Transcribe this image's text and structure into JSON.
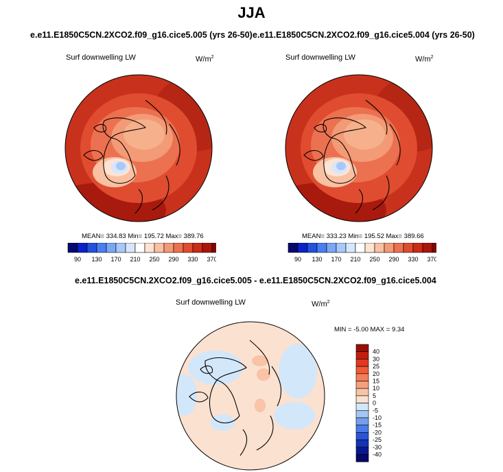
{
  "season": "JJA",
  "panels": [
    {
      "case": "e.e11.E1850C5CN.2XCO2.f09_g16.cice5.005 (yrs 26-50)",
      "variable": "Surf downwelling LW",
      "unit_base": "W/m",
      "unit_exp": "2",
      "stats": "MEAN= 334.83  Min= 195.72  Max= 389.76"
    },
    {
      "case": "e.e11.E1850C5CN.2XCO2.f09_g16.cice5.004 (yrs 26-50)",
      "variable": "Surf downwelling LW",
      "unit_base": "W/m",
      "unit_exp": "2",
      "stats": "MEAN= 333.23  Min= 195.52  Max= 389.66"
    }
  ],
  "diff": {
    "title": "e.e11.E1850C5CN.2XCO2.f09_g16.cice5.005 - e.e11.E1850C5CN.2XCO2.f09_g16.cice5.004",
    "variable": "Surf downwelling LW",
    "unit_base": "W/m",
    "unit_exp": "2",
    "stats": "MIN =  -5.00 MAX =   9.34"
  },
  "colorbar_abs": {
    "ticks": [
      "90",
      "130",
      "170",
      "210",
      "250",
      "290",
      "330",
      "370"
    ],
    "colors": [
      "#08086e",
      "#0a22c8",
      "#2352e0",
      "#4a7ef0",
      "#7aa6f5",
      "#a8c8fa",
      "#d6e6fc",
      "#ffffff",
      "#fde3d3",
      "#f9c0a2",
      "#f39a76",
      "#ec7150",
      "#e04c2e",
      "#cb2b17",
      "#aa160b",
      "#800606"
    ]
  },
  "colorbar_diff": {
    "ticks": [
      "40",
      "30",
      "25",
      "20",
      "15",
      "10",
      "5",
      "0",
      "-5",
      "-10",
      "-15",
      "-20",
      "-25",
      "-30",
      "-40"
    ],
    "colors": [
      "#9b0e05",
      "#c21e0e",
      "#e0391f",
      "#ef5a37",
      "#f47e58",
      "#f6a07e",
      "#f9c3a6",
      "#fbe1cf",
      "#d3e7fb",
      "#a6c7f4",
      "#749fed",
      "#4c7be6",
      "#2a55d8",
      "#1632b5",
      "#0a1890",
      "#06086a"
    ]
  }
}
